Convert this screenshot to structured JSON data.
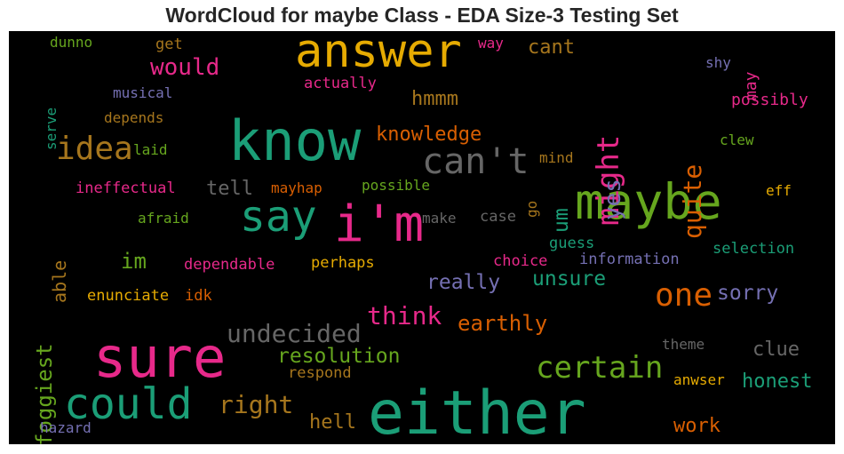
{
  "title": "WordCloud for maybe Class - EDA Size-3 Testing Set",
  "words": [
    {
      "text": "answer",
      "color": "#e6ab02"
    },
    {
      "text": "know",
      "color": "#1b9e77"
    },
    {
      "text": "sure",
      "color": "#e7298a"
    },
    {
      "text": "either",
      "color": "#1b9e77"
    },
    {
      "text": "maybe",
      "color": "#66a61e"
    },
    {
      "text": "i'm",
      "color": "#e7298a"
    },
    {
      "text": "say",
      "color": "#1b9e77"
    },
    {
      "text": "could",
      "color": "#1b9e77"
    },
    {
      "text": "can't",
      "color": "#666666"
    },
    {
      "text": "idea",
      "color": "#a6761d"
    },
    {
      "text": "certain",
      "color": "#66a61e"
    },
    {
      "text": "one",
      "color": "#d95f02"
    },
    {
      "text": "might",
      "color": "#e7298a"
    },
    {
      "text": "undecided",
      "color": "#666666"
    },
    {
      "text": "think",
      "color": "#e7298a"
    },
    {
      "text": "would",
      "color": "#e7298a"
    },
    {
      "text": "right",
      "color": "#a6761d"
    },
    {
      "text": "quite",
      "color": "#d95f02"
    },
    {
      "text": "yes",
      "color": "#7570b3"
    },
    {
      "text": "resolution",
      "color": "#66a61e"
    },
    {
      "text": "knowledge",
      "color": "#d95f02"
    },
    {
      "text": "earthly",
      "color": "#d95f02"
    },
    {
      "text": "unsure",
      "color": "#1b9e77"
    },
    {
      "text": "really",
      "color": "#7570b3"
    },
    {
      "text": "sorry",
      "color": "#7570b3"
    },
    {
      "text": "honest",
      "color": "#1b9e77"
    },
    {
      "text": "clue",
      "color": "#666666"
    },
    {
      "text": "work",
      "color": "#d95f02"
    },
    {
      "text": "foggiest",
      "color": "#66a61e"
    },
    {
      "text": "im",
      "color": "#66a61e"
    },
    {
      "text": "hmmm",
      "color": "#a6761d"
    },
    {
      "text": "tell",
      "color": "#666666"
    },
    {
      "text": "hell",
      "color": "#a6761d"
    },
    {
      "text": "cant",
      "color": "#a6761d"
    },
    {
      "text": "um",
      "color": "#1b9e77"
    },
    {
      "text": "able",
      "color": "#a6761d"
    },
    {
      "text": "dunno",
      "color": "#66a61e"
    },
    {
      "text": "get",
      "color": "#a6761d"
    },
    {
      "text": "way",
      "color": "#e7298a"
    },
    {
      "text": "may",
      "color": "#e7298a"
    },
    {
      "text": "shy",
      "color": "#7570b3"
    },
    {
      "text": "serve",
      "color": "#1b9e77"
    },
    {
      "text": "musical",
      "color": "#7570b3"
    },
    {
      "text": "actually",
      "color": "#e7298a"
    },
    {
      "text": "possibly",
      "color": "#e7298a"
    },
    {
      "text": "depends",
      "color": "#a6761d"
    },
    {
      "text": "laid",
      "color": "#66a61e"
    },
    {
      "text": "mind",
      "color": "#a6761d"
    },
    {
      "text": "clew",
      "color": "#66a61e"
    },
    {
      "text": "ineffectual",
      "color": "#e7298a"
    },
    {
      "text": "mayhap",
      "color": "#d95f02"
    },
    {
      "text": "possible",
      "color": "#66a61e"
    },
    {
      "text": "go",
      "color": "#a6761d"
    },
    {
      "text": "eff",
      "color": "#e6ab02"
    },
    {
      "text": "afraid",
      "color": "#66a61e"
    },
    {
      "text": "make",
      "color": "#666666"
    },
    {
      "text": "case",
      "color": "#666666"
    },
    {
      "text": "guess",
      "color": "#1b9e77"
    },
    {
      "text": "selection",
      "color": "#1b9e77"
    },
    {
      "text": "dependable",
      "color": "#e7298a"
    },
    {
      "text": "perhaps",
      "color": "#e6ab02"
    },
    {
      "text": "choice",
      "color": "#e7298a"
    },
    {
      "text": "information",
      "color": "#7570b3"
    },
    {
      "text": "enunciate",
      "color": "#e6ab02"
    },
    {
      "text": "idk",
      "color": "#d95f02"
    },
    {
      "text": "theme",
      "color": "#666666"
    },
    {
      "text": "respond",
      "color": "#a6761d"
    },
    {
      "text": "anwser",
      "color": "#e6ab02"
    },
    {
      "text": "hazard",
      "color": "#7570b3"
    }
  ]
}
